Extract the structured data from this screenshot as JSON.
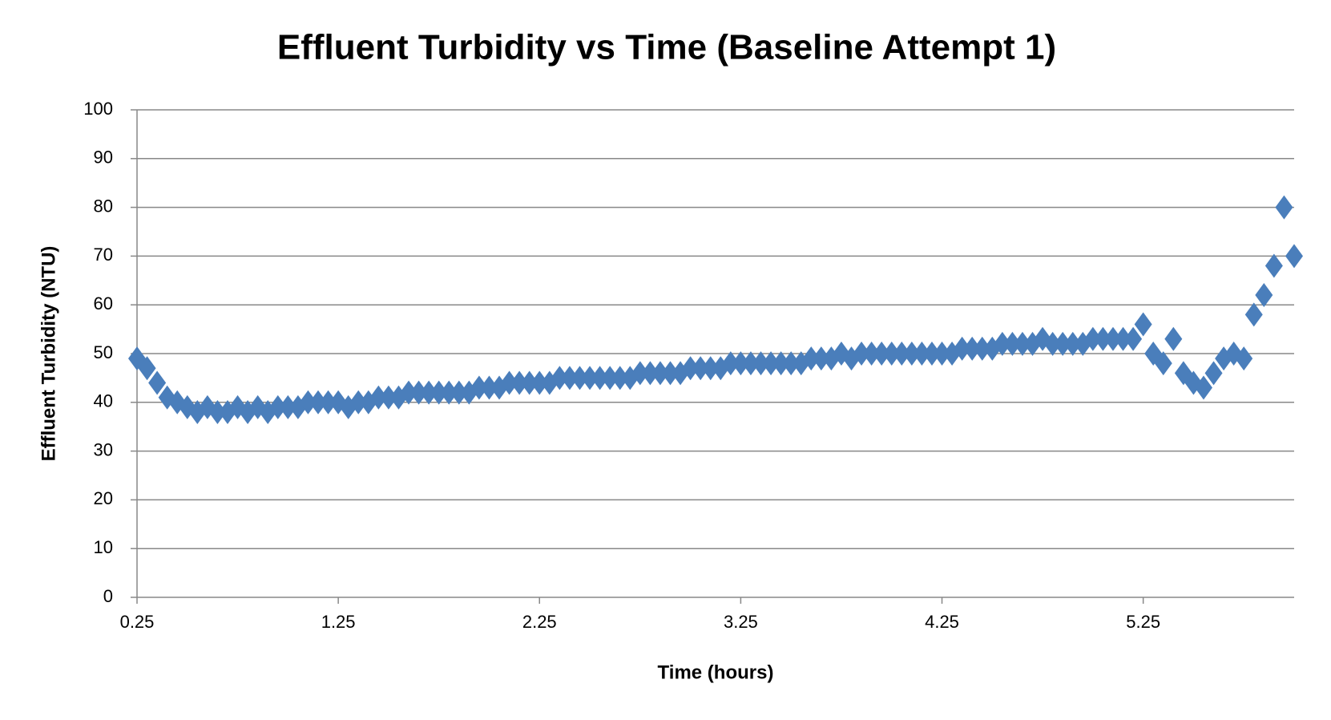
{
  "chart_data": {
    "type": "scatter",
    "title": "Effluent Turbidity vs Time (Baseline Attempt 1)",
    "x_label": "Time (hours)",
    "y_label": "Effluent Turbidity (NTU)",
    "xlim": [
      0.25,
      6.0
    ],
    "xticks": [
      0.25,
      1.25,
      2.25,
      3.25,
      4.25,
      5.25
    ],
    "ylim": [
      0,
      100
    ],
    "yticks": [
      0,
      10,
      20,
      30,
      40,
      50,
      60,
      70,
      80,
      90,
      100
    ],
    "grid": true,
    "series": [
      {
        "color": "#4a7ebb",
        "x": [
          0.25,
          0.3,
          0.35,
          0.4,
          0.45,
          0.5,
          0.55,
          0.6,
          0.65,
          0.7,
          0.75,
          0.8,
          0.85,
          0.9,
          0.95,
          1.0,
          1.05,
          1.1,
          1.15,
          1.2,
          1.25,
          1.3,
          1.35,
          1.4,
          1.45,
          1.5,
          1.55,
          1.6,
          1.65,
          1.7,
          1.75,
          1.8,
          1.85,
          1.9,
          1.95,
          2.0,
          2.05,
          2.1,
          2.15,
          2.2,
          2.25,
          2.3,
          2.35,
          2.4,
          2.45,
          2.5,
          2.55,
          2.6,
          2.65,
          2.7,
          2.75,
          2.8,
          2.85,
          2.9,
          2.95,
          3.0,
          3.05,
          3.1,
          3.15,
          3.2,
          3.25,
          3.3,
          3.35,
          3.4,
          3.45,
          3.5,
          3.55,
          3.6,
          3.65,
          3.7,
          3.75,
          3.8,
          3.85,
          3.9,
          3.95,
          4.0,
          4.05,
          4.1,
          4.15,
          4.2,
          4.25,
          4.3,
          4.35,
          4.4,
          4.45,
          4.5,
          4.55,
          4.6,
          4.65,
          4.7,
          4.75,
          4.8,
          4.85,
          4.9,
          4.95,
          5.0,
          5.05,
          5.1,
          5.15,
          5.2,
          5.25,
          5.3,
          5.35,
          5.4,
          5.45,
          5.5,
          5.55,
          5.6,
          5.65,
          5.7,
          5.75,
          5.8,
          5.85,
          5.9,
          5.95,
          6.0
        ],
        "values": [
          49,
          47,
          44,
          41,
          40,
          39,
          38,
          39,
          38,
          38,
          39,
          38,
          39,
          38,
          39,
          39,
          39,
          40,
          40,
          40,
          40,
          39,
          40,
          40,
          41,
          41,
          41,
          42,
          42,
          42,
          42,
          42,
          42,
          42,
          43,
          43,
          43,
          44,
          44,
          44,
          44,
          44,
          45,
          45,
          45,
          45,
          45,
          45,
          45,
          45,
          46,
          46,
          46,
          46,
          46,
          47,
          47,
          47,
          47,
          48,
          48,
          48,
          48,
          48,
          48,
          48,
          48,
          49,
          49,
          49,
          50,
          49,
          50,
          50,
          50,
          50,
          50,
          50,
          50,
          50,
          50,
          50,
          51,
          51,
          51,
          51,
          52,
          52,
          52,
          52,
          53,
          52,
          52,
          52,
          52,
          53,
          53,
          53,
          53,
          53,
          56,
          50,
          48,
          53,
          46,
          44,
          43,
          46,
          49,
          50,
          49,
          58,
          62,
          68,
          80,
          70
        ]
      }
    ]
  }
}
